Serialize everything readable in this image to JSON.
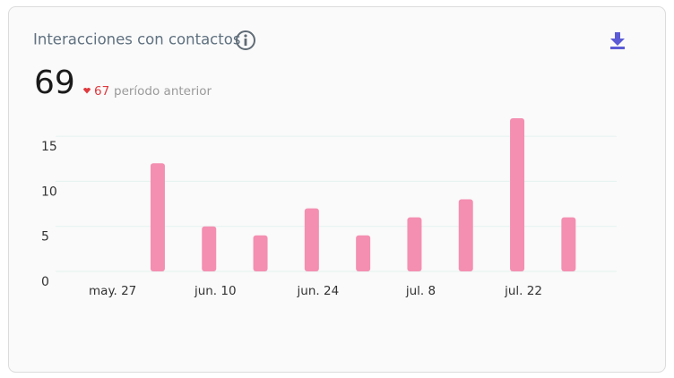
{
  "widget": {
    "title": "Interacciones con contactos",
    "total": 69,
    "previous": 67,
    "previous_label": "período anterior"
  },
  "chart_data": {
    "type": "bar",
    "categories": [
      "may. 27",
      null,
      "jun. 10",
      null,
      "jun. 24",
      null,
      "jul. 8",
      null,
      "jul. 22",
      null
    ],
    "values": [
      0,
      12,
      5,
      4,
      7,
      4,
      6,
      8,
      17,
      6
    ],
    "color": "#f48fb1",
    "ylim": [
      0,
      17
    ],
    "yticks": [
      0,
      5,
      10,
      15
    ],
    "grid": true
  }
}
